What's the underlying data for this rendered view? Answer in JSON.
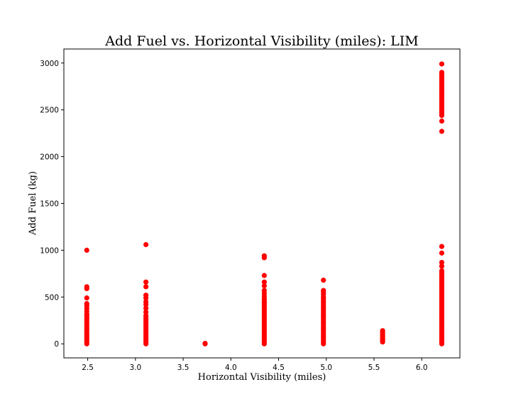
{
  "chart_data": {
    "type": "scatter",
    "title": "Add Fuel vs. Horizontal Visibility (miles): LIM",
    "xlabel": "Horizontal Visibility (miles)",
    "ylabel": "Add Fuel (kg)",
    "xlim": [
      2.25,
      6.4
    ],
    "ylim": [
      -150,
      3150
    ],
    "xticks": [
      2.5,
      3.0,
      3.5,
      4.0,
      4.5,
      5.0,
      5.5,
      6.0
    ],
    "xtick_labels": [
      "2.5",
      "3.0",
      "3.5",
      "4.0",
      "4.5",
      "5.0",
      "5.5",
      "6.0"
    ],
    "yticks": [
      0,
      500,
      1000,
      1500,
      2000,
      2500,
      3000
    ],
    "ytick_labels": [
      "0",
      "500",
      "1000",
      "1500",
      "2000",
      "2500",
      "3000"
    ],
    "grid": false,
    "marker_color": "#ff0000",
    "series": [
      {
        "points": [
          [
            2.49,
            0
          ],
          [
            2.49,
            20
          ],
          [
            2.49,
            40
          ],
          [
            2.49,
            60
          ],
          [
            2.49,
            80
          ],
          [
            2.49,
            100
          ],
          [
            2.49,
            120
          ],
          [
            2.49,
            140
          ],
          [
            2.49,
            160
          ],
          [
            2.49,
            180
          ],
          [
            2.49,
            200
          ],
          [
            2.49,
            220
          ],
          [
            2.49,
            240
          ],
          [
            2.49,
            260
          ],
          [
            2.49,
            280
          ],
          [
            2.49,
            300
          ],
          [
            2.49,
            320
          ],
          [
            2.49,
            350
          ],
          [
            2.49,
            380
          ],
          [
            2.49,
            410
          ],
          [
            2.49,
            430
          ],
          [
            2.49,
            490
          ],
          [
            2.49,
            590
          ],
          [
            2.49,
            610
          ],
          [
            2.49,
            1000
          ],
          [
            3.11,
            0
          ],
          [
            3.11,
            20
          ],
          [
            3.11,
            40
          ],
          [
            3.11,
            60
          ],
          [
            3.11,
            80
          ],
          [
            3.11,
            100
          ],
          [
            3.11,
            120
          ],
          [
            3.11,
            140
          ],
          [
            3.11,
            160
          ],
          [
            3.11,
            180
          ],
          [
            3.11,
            200
          ],
          [
            3.11,
            220
          ],
          [
            3.11,
            240
          ],
          [
            3.11,
            260
          ],
          [
            3.11,
            280
          ],
          [
            3.11,
            300
          ],
          [
            3.11,
            340
          ],
          [
            3.11,
            380
          ],
          [
            3.11,
            420
          ],
          [
            3.11,
            450
          ],
          [
            3.11,
            490
          ],
          [
            3.11,
            520
          ],
          [
            3.11,
            610
          ],
          [
            3.11,
            660
          ],
          [
            3.11,
            1060
          ],
          [
            3.73,
            0
          ],
          [
            3.73,
            5
          ],
          [
            4.35,
            0
          ],
          [
            4.35,
            20
          ],
          [
            4.35,
            40
          ],
          [
            4.35,
            60
          ],
          [
            4.35,
            80
          ],
          [
            4.35,
            100
          ],
          [
            4.35,
            120
          ],
          [
            4.35,
            140
          ],
          [
            4.35,
            160
          ],
          [
            4.35,
            180
          ],
          [
            4.35,
            200
          ],
          [
            4.35,
            220
          ],
          [
            4.35,
            240
          ],
          [
            4.35,
            260
          ],
          [
            4.35,
            280
          ],
          [
            4.35,
            300
          ],
          [
            4.35,
            320
          ],
          [
            4.35,
            340
          ],
          [
            4.35,
            360
          ],
          [
            4.35,
            380
          ],
          [
            4.35,
            400
          ],
          [
            4.35,
            420
          ],
          [
            4.35,
            440
          ],
          [
            4.35,
            460
          ],
          [
            4.35,
            480
          ],
          [
            4.35,
            510
          ],
          [
            4.35,
            540
          ],
          [
            4.35,
            570
          ],
          [
            4.35,
            620
          ],
          [
            4.35,
            660
          ],
          [
            4.35,
            730
          ],
          [
            4.35,
            920
          ],
          [
            4.35,
            940
          ],
          [
            4.97,
            0
          ],
          [
            4.97,
            20
          ],
          [
            4.97,
            40
          ],
          [
            4.97,
            60
          ],
          [
            4.97,
            80
          ],
          [
            4.97,
            100
          ],
          [
            4.97,
            120
          ],
          [
            4.97,
            140
          ],
          [
            4.97,
            160
          ],
          [
            4.97,
            180
          ],
          [
            4.97,
            200
          ],
          [
            4.97,
            220
          ],
          [
            4.97,
            240
          ],
          [
            4.97,
            260
          ],
          [
            4.97,
            280
          ],
          [
            4.97,
            300
          ],
          [
            4.97,
            320
          ],
          [
            4.97,
            340
          ],
          [
            4.97,
            360
          ],
          [
            4.97,
            380
          ],
          [
            4.97,
            400
          ],
          [
            4.97,
            420
          ],
          [
            4.97,
            440
          ],
          [
            4.97,
            460
          ],
          [
            4.97,
            480
          ],
          [
            4.97,
            500
          ],
          [
            4.97,
            530
          ],
          [
            4.97,
            550
          ],
          [
            4.97,
            570
          ],
          [
            4.97,
            680
          ],
          [
            5.59,
            20
          ],
          [
            5.59,
            35
          ],
          [
            5.59,
            50
          ],
          [
            5.59,
            65
          ],
          [
            5.59,
            80
          ],
          [
            5.59,
            95
          ],
          [
            5.59,
            110
          ],
          [
            5.59,
            125
          ],
          [
            5.59,
            140
          ],
          [
            6.21,
            0
          ],
          [
            6.21,
            20
          ],
          [
            6.21,
            40
          ],
          [
            6.21,
            60
          ],
          [
            6.21,
            80
          ],
          [
            6.21,
            100
          ],
          [
            6.21,
            120
          ],
          [
            6.21,
            140
          ],
          [
            6.21,
            160
          ],
          [
            6.21,
            180
          ],
          [
            6.21,
            200
          ],
          [
            6.21,
            220
          ],
          [
            6.21,
            240
          ],
          [
            6.21,
            260
          ],
          [
            6.21,
            280
          ],
          [
            6.21,
            300
          ],
          [
            6.21,
            320
          ],
          [
            6.21,
            340
          ],
          [
            6.21,
            360
          ],
          [
            6.21,
            380
          ],
          [
            6.21,
            400
          ],
          [
            6.21,
            420
          ],
          [
            6.21,
            440
          ],
          [
            6.21,
            460
          ],
          [
            6.21,
            480
          ],
          [
            6.21,
            500
          ],
          [
            6.21,
            520
          ],
          [
            6.21,
            540
          ],
          [
            6.21,
            560
          ],
          [
            6.21,
            580
          ],
          [
            6.21,
            600
          ],
          [
            6.21,
            620
          ],
          [
            6.21,
            640
          ],
          [
            6.21,
            660
          ],
          [
            6.21,
            680
          ],
          [
            6.21,
            700
          ],
          [
            6.21,
            720
          ],
          [
            6.21,
            740
          ],
          [
            6.21,
            760
          ],
          [
            6.21,
            780
          ],
          [
            6.21,
            830
          ],
          [
            6.21,
            870
          ],
          [
            6.21,
            970
          ],
          [
            6.21,
            1040
          ],
          [
            6.21,
            2270
          ],
          [
            6.21,
            2380
          ],
          [
            6.21,
            2440
          ],
          [
            6.21,
            2460
          ],
          [
            6.21,
            2480
          ],
          [
            6.21,
            2500
          ],
          [
            6.21,
            2520
          ],
          [
            6.21,
            2540
          ],
          [
            6.21,
            2560
          ],
          [
            6.21,
            2580
          ],
          [
            6.21,
            2600
          ],
          [
            6.21,
            2620
          ],
          [
            6.21,
            2640
          ],
          [
            6.21,
            2660
          ],
          [
            6.21,
            2680
          ],
          [
            6.21,
            2700
          ],
          [
            6.21,
            2720
          ],
          [
            6.21,
            2740
          ],
          [
            6.21,
            2760
          ],
          [
            6.21,
            2780
          ],
          [
            6.21,
            2800
          ],
          [
            6.21,
            2820
          ],
          [
            6.21,
            2840
          ],
          [
            6.21,
            2860
          ],
          [
            6.21,
            2880
          ],
          [
            6.21,
            2900
          ],
          [
            6.21,
            2990
          ]
        ]
      }
    ]
  }
}
